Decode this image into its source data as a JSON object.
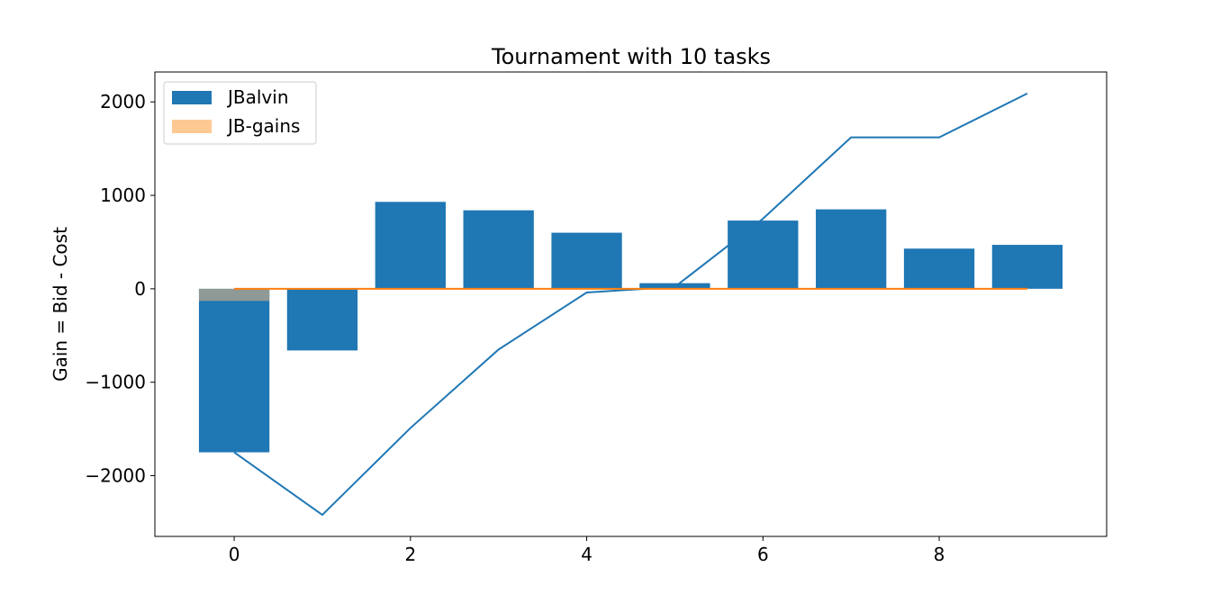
{
  "chart_data": {
    "type": "bar",
    "title": "Tournament with 10 tasks",
    "xlabel": "",
    "ylabel": "Gain = Bid - Cost",
    "xlim": [
      -0.9,
      9.9
    ],
    "ylim": [
      -2650,
      2320
    ],
    "xticks": [
      0,
      2,
      4,
      6,
      8
    ],
    "yticks": [
      2000,
      1000,
      0,
      -1000,
      -2000
    ],
    "ytick_labels": [
      "2000",
      "1000",
      "0",
      "−1000",
      "−2000"
    ],
    "legend_position": "upper-left",
    "x": [
      0,
      1,
      2,
      3,
      4,
      5,
      6,
      7,
      8,
      9
    ],
    "series": [
      {
        "name": "JBalvin",
        "kind": "bar",
        "color": "#1f77b4",
        "values": [
          -1750,
          -660,
          930,
          840,
          600,
          60,
          730,
          850,
          430,
          470
        ]
      },
      {
        "name": "JB-gains",
        "kind": "bar",
        "color": "#ffbb78",
        "opacity": 0.5,
        "values": [
          -130,
          0,
          0,
          0,
          0,
          0,
          0,
          0,
          0,
          0
        ]
      },
      {
        "kind": "line",
        "color": "#1f77b4",
        "values": [
          -1750,
          -2420,
          -1490,
          -650,
          -40,
          20,
          750,
          1620,
          1620,
          2090
        ]
      },
      {
        "kind": "line",
        "color": "#ff7f0e",
        "values": [
          0,
          0,
          0,
          0,
          0,
          0,
          0,
          0,
          0,
          0
        ]
      }
    ]
  }
}
